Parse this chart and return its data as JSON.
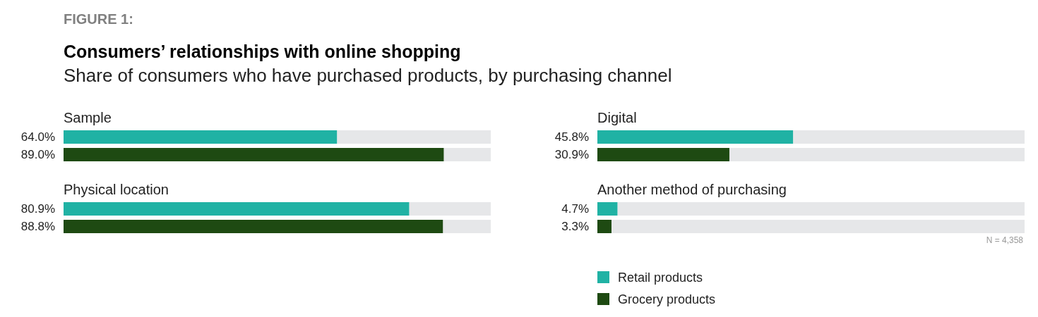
{
  "chart_data": [
    {
      "type": "bar",
      "orientation": "horizontal",
      "title": "Consumers’ relationships with online shopping",
      "subtitle": "Share of consumers who have purchased products, by purchasing channel",
      "annotations": [
        "FIGURE 1:"
      ],
      "categories": [
        "Sample"
      ],
      "xlim": [
        0,
        100
      ],
      "series": [
        {
          "color": "#20b2a4",
          "values": [
            64.0
          ],
          "value_labels": [
            "64.0%"
          ]
        },
        {
          "color": "#1e4a12",
          "values": [
            89.0
          ],
          "value_labels": [
            "89.0%"
          ]
        }
      ]
    },
    {
      "type": "bar",
      "orientation": "horizontal",
      "categories": [
        "Digital"
      ],
      "xlim": [
        0,
        100
      ],
      "series": [
        {
          "color": "#20b2a4",
          "values": [
            45.8
          ],
          "value_labels": [
            "45.8%"
          ]
        },
        {
          "color": "#1e4a12",
          "values": [
            30.9
          ],
          "value_labels": [
            "30.9%"
          ]
        }
      ]
    },
    {
      "type": "bar",
      "orientation": "horizontal",
      "categories": [
        "Physical location"
      ],
      "xlim": [
        0,
        100
      ],
      "series": [
        {
          "color": "#20b2a4",
          "values": [
            80.9
          ],
          "value_labels": [
            "80.9%"
          ]
        },
        {
          "color": "#1e4a12",
          "values": [
            88.8
          ],
          "value_labels": [
            "88.8%"
          ]
        }
      ]
    },
    {
      "type": "bar",
      "orientation": "horizontal",
      "categories": [
        "Another method of purchasing"
      ],
      "xlim": [
        0,
        100
      ],
      "annotations": [
        "N = 4,358"
      ],
      "legend": "bottom left",
      "series": [
        {
          "name": "Retail products",
          "color": "#20b2a4",
          "values": [
            4.7
          ],
          "value_labels": [
            "4.7%"
          ]
        },
        {
          "name": "Grocery products",
          "color": "#1e4a12",
          "values": [
            3.3
          ],
          "value_labels": [
            "3.3%"
          ]
        }
      ]
    }
  ]
}
